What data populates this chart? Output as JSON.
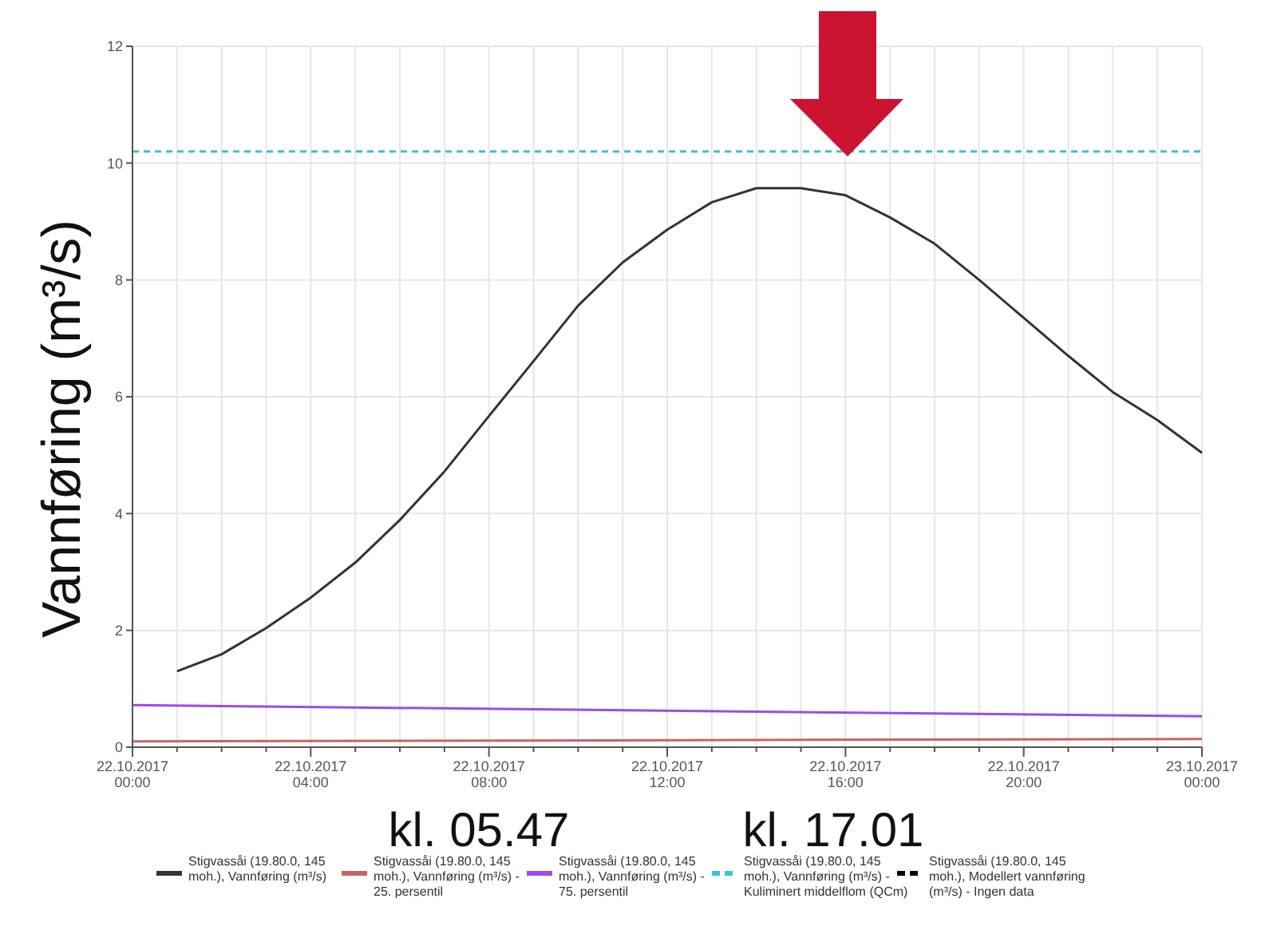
{
  "chart_data": {
    "type": "line",
    "ylabel": "Vannføring (m³/s)",
    "xlim": [
      "2017-10-22T00:00",
      "2017-10-23T00:00"
    ],
    "xticks": [
      {
        "value": "2017-10-22T00:00",
        "label": "22.10.2017 00:00"
      },
      {
        "value": "2017-10-22T01:00",
        "label": null
      },
      {
        "value": "2017-10-22T02:00",
        "label": null
      },
      {
        "value": "2017-10-22T03:00",
        "label": null
      },
      {
        "value": "2017-10-22T04:00",
        "label": "22.10.2017 04:00"
      },
      {
        "value": "2017-10-22T05:00",
        "label": null
      },
      {
        "value": "2017-10-22T06:00",
        "label": null
      },
      {
        "value": "2017-10-22T07:00",
        "label": null
      },
      {
        "value": "2017-10-22T08:00",
        "label": "22.10.2017 08:00"
      },
      {
        "value": "2017-10-22T09:00",
        "label": null
      },
      {
        "value": "2017-10-22T10:00",
        "label": null
      },
      {
        "value": "2017-10-22T11:00",
        "label": null
      },
      {
        "value": "2017-10-22T12:00",
        "label": "22.10.2017 12:00"
      },
      {
        "value": "2017-10-22T13:00",
        "label": null
      },
      {
        "value": "2017-10-22T14:00",
        "label": null
      },
      {
        "value": "2017-10-22T15:00",
        "label": null
      },
      {
        "value": "2017-10-22T16:00",
        "label": "22.10.2017 16:00"
      },
      {
        "value": "2017-10-22T17:00",
        "label": null
      },
      {
        "value": "2017-10-22T18:00",
        "label": null
      },
      {
        "value": "2017-10-22T19:00",
        "label": null
      },
      {
        "value": "2017-10-22T20:00",
        "label": "22.10.2017 20:00"
      },
      {
        "value": "2017-10-22T21:00",
        "label": null
      },
      {
        "value": "2017-10-22T22:00",
        "label": null
      },
      {
        "value": "2017-10-22T23:00",
        "label": null
      },
      {
        "value": "2017-10-23T00:00",
        "label": "23.10.2017 00:00"
      }
    ],
    "ylim": [
      0,
      12
    ],
    "yticks": [
      0,
      2,
      4,
      6,
      8,
      10,
      12
    ],
    "grid": true,
    "legend": "bottom",
    "marker": "none",
    "series": [
      {
        "name": "Stigvassåi (19.80.0, 145 moh.), Vannføring (m³/s)",
        "color": "#333333",
        "line_style": "solid",
        "x": [
          "2017-10-22T01:00",
          "2017-10-22T02:00",
          "2017-10-22T03:00",
          "2017-10-22T04:00",
          "2017-10-22T05:00",
          "2017-10-22T06:00",
          "2017-10-22T07:00",
          "2017-10-22T08:00",
          "2017-10-22T09:00",
          "2017-10-22T10:00",
          "2017-10-22T11:00",
          "2017-10-22T12:00",
          "2017-10-22T13:00",
          "2017-10-22T14:00",
          "2017-10-22T15:00",
          "2017-10-22T16:00",
          "2017-10-22T17:00",
          "2017-10-22T18:00",
          "2017-10-22T19:00",
          "2017-10-22T20:00",
          "2017-10-22T21:00",
          "2017-10-22T22:00",
          "2017-10-22T23:00",
          "2017-10-23T00:00"
        ],
        "values": [
          1.3,
          1.59,
          2.04,
          2.56,
          3.16,
          3.89,
          4.72,
          5.67,
          6.61,
          7.56,
          8.3,
          8.86,
          9.33,
          9.57,
          9.57,
          9.45,
          9.07,
          8.62,
          8.0,
          7.35,
          6.7,
          6.08,
          5.6,
          5.04
        ]
      },
      {
        "name": "Stigvassåi (19.80.0, 145 moh.), Vannføring (m³/s) - 25. persentil",
        "color": "#c86464",
        "line_style": "solid",
        "x": [
          "2017-10-22T00:00",
          "2017-10-23T00:00"
        ],
        "values": [
          0.1,
          0.14
        ]
      },
      {
        "name": "Stigvassåi (19.80.0, 145 moh.), Vannføring (m³/s) - 75. persentil",
        "color": "#9b4de8",
        "line_style": "solid",
        "x": [
          "2017-10-22T00:00",
          "2017-10-23T00:00"
        ],
        "values": [
          0.72,
          0.53
        ]
      },
      {
        "name": "Stigvassåi (19.80.0, 145 moh.), Vannføring (m³/s) - Kuliminert middelflom (QCm)",
        "color": "#3cc4c4",
        "line_style": "dashed",
        "x": [
          "2017-10-22T00:00",
          "2017-10-23T00:00"
        ],
        "values": [
          10.2,
          10.2
        ]
      },
      {
        "name": "Stigvassåi (19.80.0, 145 moh.), Modellert vannføring (m³/s) - Ingen data",
        "color": "#000000",
        "line_style": "dashed"
      }
    ],
    "annotations": [
      "kl. 05.47",
      "kl. 17.01"
    ]
  }
}
